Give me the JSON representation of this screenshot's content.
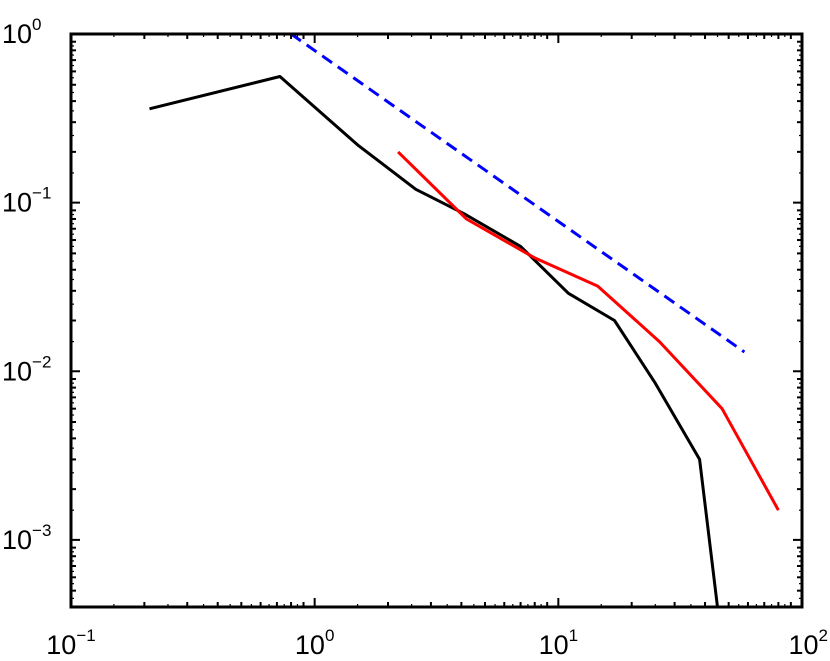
{
  "chart_data": {
    "type": "line",
    "title": "",
    "xlabel": "",
    "ylabel": "",
    "x_scale": "log",
    "y_scale": "log",
    "xlim": [
      0.1,
      100
    ],
    "ylim": [
      0.0004,
      1
    ],
    "grid": false,
    "legend": "none",
    "x_ticks": [
      {
        "base": "10",
        "exp": "−1",
        "value": 0.1
      },
      {
        "base": "10",
        "exp": "0",
        "value": 1
      },
      {
        "base": "10",
        "exp": "1",
        "value": 10
      },
      {
        "base": "10",
        "exp": "2",
        "value": 100
      }
    ],
    "y_ticks": [
      {
        "base": "10",
        "exp": "0",
        "value": 1
      },
      {
        "base": "10",
        "exp": "−1",
        "value": 0.1
      },
      {
        "base": "10",
        "exp": "−2",
        "value": 0.01
      },
      {
        "base": "10",
        "exp": "−3",
        "value": 0.001
      }
    ],
    "series": [
      {
        "color": "#000000",
        "style": "solid",
        "x": [
          0.21,
          0.72,
          1.5,
          2.6,
          4.1,
          7.0,
          11.0,
          17.0,
          25.0,
          38.0,
          45.0
        ],
        "y": [
          0.36,
          0.56,
          0.22,
          0.12,
          0.086,
          0.055,
          0.029,
          0.02,
          0.0085,
          0.003,
          0.0004
        ]
      },
      {
        "color": "#ff0000",
        "style": "solid",
        "x": [
          2.2,
          4.2,
          8.0,
          14.5,
          26.0,
          47.0,
          80.0
        ],
        "y": [
          0.2,
          0.08,
          0.047,
          0.032,
          0.015,
          0.006,
          0.0015
        ]
      },
      {
        "color": "#0000ff",
        "style": "dashed",
        "x": [
          0.8,
          58.0
        ],
        "y": [
          1.0,
          0.013
        ]
      }
    ]
  }
}
